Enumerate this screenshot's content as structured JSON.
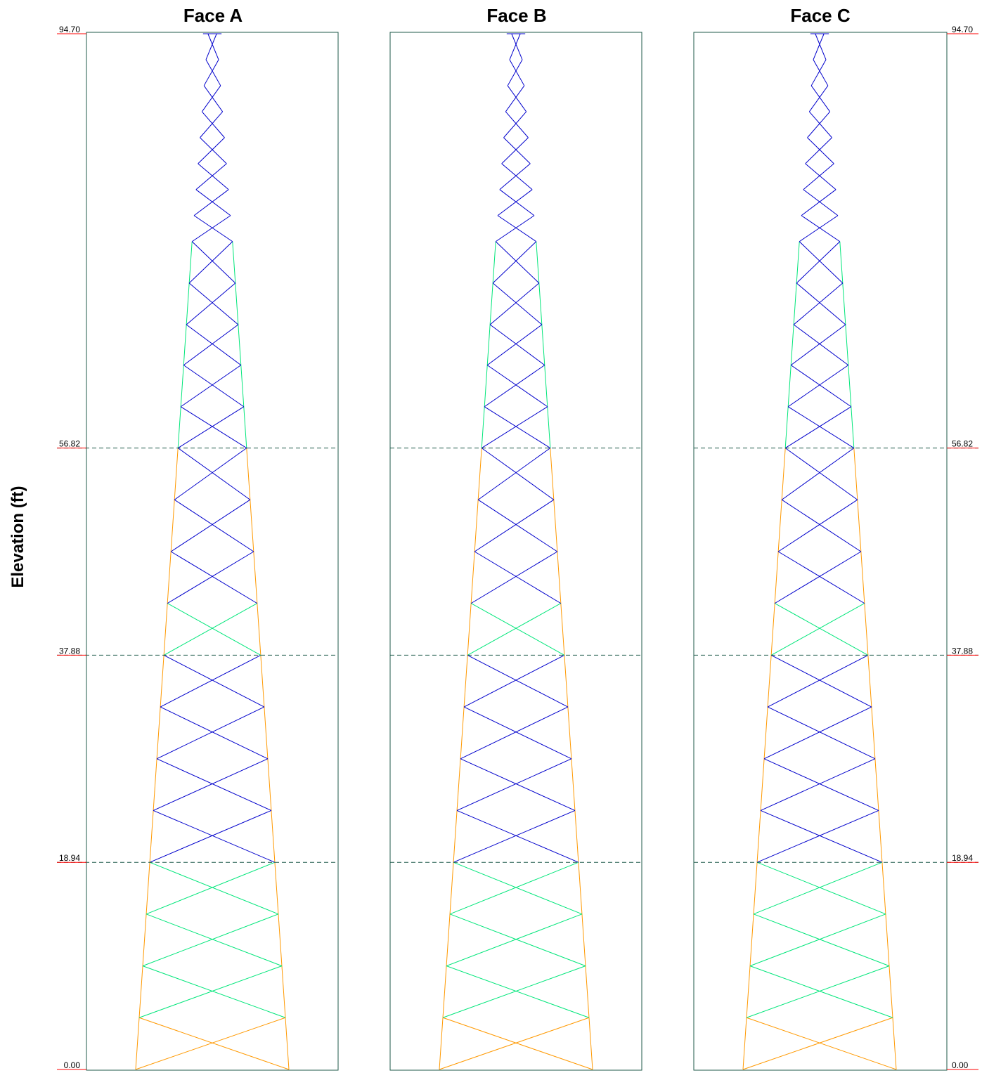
{
  "y_axis_title": "Elevation (ft)",
  "faces": [
    {
      "title": "Face A"
    },
    {
      "title": "Face B"
    },
    {
      "title": "Face C"
    }
  ],
  "elevations": [
    {
      "value": 94.7,
      "label": "94.70"
    },
    {
      "value": 56.82,
      "label": "56.82"
    },
    {
      "value": 37.88,
      "label": "37.88"
    },
    {
      "value": 18.94,
      "label": "18.94"
    },
    {
      "value": 0.0,
      "label": "0.00"
    }
  ],
  "colors": {
    "frame": "#1f5a4a",
    "section_line": "#1f5a4a",
    "tick": "#ff0000",
    "orange": "#ff9900",
    "green": "#00e67a",
    "blue": "#0000cc"
  },
  "tower": {
    "base_width_ft": 10.6,
    "top_width_ft": 0.6,
    "lattice_top_elevation_ft": 75.7,
    "lattice_top_width_ft": 2.8,
    "panels": [
      {
        "from": 0.0,
        "to": 4.74,
        "brace": "orange",
        "leg": "orange"
      },
      {
        "from": 4.74,
        "to": 9.47,
        "brace": "green",
        "leg": "orange"
      },
      {
        "from": 9.47,
        "to": 14.21,
        "brace": "green",
        "leg": "orange"
      },
      {
        "from": 14.21,
        "to": 18.94,
        "brace": "green",
        "leg": "orange"
      },
      {
        "from": 18.94,
        "to": 23.68,
        "brace": "blue",
        "leg": "orange"
      },
      {
        "from": 23.68,
        "to": 28.41,
        "brace": "blue",
        "leg": "orange"
      },
      {
        "from": 28.41,
        "to": 33.15,
        "brace": "blue",
        "leg": "orange"
      },
      {
        "from": 33.15,
        "to": 37.88,
        "brace": "blue",
        "leg": "orange"
      },
      {
        "from": 37.88,
        "to": 42.62,
        "brace": "green",
        "leg": "orange"
      },
      {
        "from": 42.62,
        "to": 47.35,
        "brace": "blue",
        "leg": "orange"
      },
      {
        "from": 47.35,
        "to": 52.09,
        "brace": "blue",
        "leg": "orange"
      },
      {
        "from": 52.09,
        "to": 56.82,
        "brace": "blue",
        "leg": "orange"
      },
      {
        "from": 56.82,
        "to": 60.6,
        "brace": "blue",
        "leg": "green"
      },
      {
        "from": 60.6,
        "to": 64.4,
        "brace": "blue",
        "leg": "green"
      },
      {
        "from": 64.4,
        "to": 68.1,
        "brace": "blue",
        "leg": "green"
      },
      {
        "from": 68.1,
        "to": 71.9,
        "brace": "blue",
        "leg": "green"
      },
      {
        "from": 71.9,
        "to": 75.7,
        "brace": "blue",
        "leg": "green"
      }
    ],
    "zigzag_count": 8,
    "zigzag_color": "blue"
  }
}
